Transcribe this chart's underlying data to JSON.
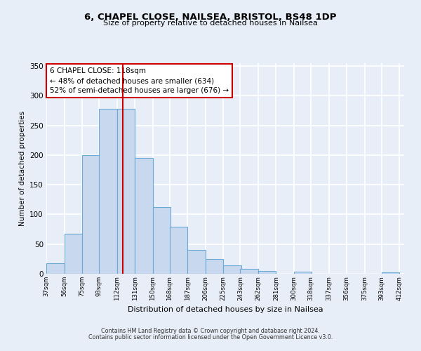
{
  "title_line1": "6, CHAPEL CLOSE, NAILSEA, BRISTOL, BS48 1DP",
  "title_line2": "Size of property relative to detached houses in Nailsea",
  "xlabel": "Distribution of detached houses by size in Nailsea",
  "ylabel": "Number of detached properties",
  "bin_labels": [
    "37sqm",
    "56sqm",
    "75sqm",
    "93sqm",
    "112sqm",
    "131sqm",
    "150sqm",
    "168sqm",
    "187sqm",
    "206sqm",
    "225sqm",
    "243sqm",
    "262sqm",
    "281sqm",
    "300sqm",
    "318sqm",
    "337sqm",
    "356sqm",
    "375sqm",
    "393sqm",
    "412sqm"
  ],
  "bin_edges": [
    37,
    56,
    75,
    93,
    112,
    131,
    150,
    168,
    187,
    206,
    225,
    243,
    262,
    281,
    300,
    318,
    337,
    356,
    375,
    393,
    412
  ],
  "bar_heights": [
    18,
    68,
    200,
    278,
    278,
    195,
    113,
    79,
    40,
    25,
    14,
    8,
    5,
    0,
    3,
    0,
    0,
    0,
    0,
    2
  ],
  "bar_color": "#c8d8ee",
  "bar_edge_color": "#6aaad4",
  "vline_x": 118,
  "vline_color": "#cc0000",
  "annotation_text": "6 CHAPEL CLOSE: 118sqm\n← 48% of detached houses are smaller (634)\n52% of semi-detached houses are larger (676) →",
  "annotation_box_color": "#ffffff",
  "annotation_box_edge": "#cc0000",
  "ylim": [
    0,
    355
  ],
  "yticks": [
    0,
    50,
    100,
    150,
    200,
    250,
    300,
    350
  ],
  "footer_line1": "Contains HM Land Registry data © Crown copyright and database right 2024.",
  "footer_line2": "Contains public sector information licensed under the Open Government Licence v3.0.",
  "background_color": "#e8eef8",
  "plot_bg_color": "#e8eef8",
  "grid_color": "#ffffff"
}
